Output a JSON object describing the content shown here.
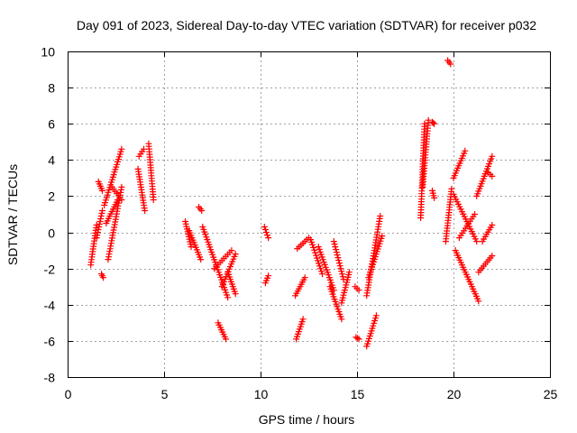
{
  "chart_data": {
    "type": "scatter",
    "title": "Day 091 of 2023, Sidereal Day-to-day VTEC variation (SDTVAR) for receiver p032",
    "xlabel": "GPS time / hours",
    "ylabel": "SDTVAR / TECUs",
    "xlim": [
      0,
      25
    ],
    "ylim": [
      -8,
      10
    ],
    "x_ticks": [
      0,
      5,
      10,
      15,
      20,
      25
    ],
    "y_ticks": [
      -8,
      -6,
      -4,
      -2,
      0,
      2,
      4,
      6,
      8,
      10
    ],
    "x_tick_labels": [
      "0",
      "5",
      "10",
      "15",
      "20",
      "25"
    ],
    "y_tick_labels": [
      "-8",
      "-6",
      "-4",
      "-2",
      "0",
      "2",
      "4",
      "6",
      "8",
      "10"
    ],
    "grid": true,
    "legend": "none",
    "marker": "+",
    "color": "#ff0000",
    "series": [
      {
        "arcs": [
          {
            "x": [
              1.2,
              1.5
            ],
            "y": [
              -1.8,
              0.4
            ]
          },
          {
            "x": [
              1.5,
              1.8
            ],
            "y": [
              -0.3,
              1.2
            ]
          },
          {
            "x": [
              1.6,
              1.8
            ],
            "y": [
              2.8,
              2.3
            ]
          },
          {
            "x": [
              1.75,
              1.85
            ],
            "y": [
              -2.3,
              -2.5
            ]
          },
          {
            "x": [
              1.9,
              2.8
            ],
            "y": [
              1.5,
              4.6
            ]
          },
          {
            "x": [
              2.1,
              2.8
            ],
            "y": [
              -1.5,
              2.5
            ]
          },
          {
            "x": [
              2.0,
              2.6
            ],
            "y": [
              0.5,
              1.8
            ]
          },
          {
            "x": [
              2.3,
              2.8
            ],
            "y": [
              2.5,
              1.8
            ]
          },
          {
            "x": [
              3.7,
              3.95
            ],
            "y": [
              4.2,
              4.6
            ]
          },
          {
            "x": [
              3.65,
              4.0
            ],
            "y": [
              3.5,
              1.2
            ]
          },
          {
            "x": [
              4.2,
              4.45
            ],
            "y": [
              4.9,
              1.8
            ]
          },
          {
            "x": [
              6.1,
              6.4
            ],
            "y": [
              0.6,
              -0.8
            ]
          },
          {
            "x": [
              6.3,
              6.9
            ],
            "y": [
              0.1,
              -1.5
            ]
          },
          {
            "x": [
              6.8,
              6.95
            ],
            "y": [
              1.4,
              1.2
            ]
          },
          {
            "x": [
              7.0,
              8.3
            ],
            "y": [
              0.3,
              -3.6
            ]
          },
          {
            "x": [
              7.8,
              8.2
            ],
            "y": [
              -5.0,
              -5.9
            ]
          },
          {
            "x": [
              7.6,
              8.5
            ],
            "y": [
              -2.0,
              -1.0
            ]
          },
          {
            "x": [
              8.0,
              8.7
            ],
            "y": [
              -3.0,
              -1.2
            ]
          },
          {
            "x": [
              8.3,
              8.7
            ],
            "y": [
              -2.2,
              -3.4
            ]
          },
          {
            "x": [
              10.25,
              10.4
            ],
            "y": [
              -2.8,
              -2.4
            ]
          },
          {
            "x": [
              10.2,
              10.4
            ],
            "y": [
              0.3,
              -0.3
            ]
          },
          {
            "x": [
              11.8,
              12.3
            ],
            "y": [
              -3.5,
              -2.5
            ]
          },
          {
            "x": [
              11.85,
              12.2
            ],
            "y": [
              -5.9,
              -4.8
            ]
          },
          {
            "x": [
              11.9,
              12.5
            ],
            "y": [
              -0.9,
              -0.3
            ]
          },
          {
            "x": [
              12.6,
              13.2
            ],
            "y": [
              -0.4,
              -2.3
            ]
          },
          {
            "x": [
              13.0,
              13.8
            ],
            "y": [
              -0.8,
              -3.2
            ]
          },
          {
            "x": [
              13.6,
              14.2
            ],
            "y": [
              -3.0,
              -4.8
            ]
          },
          {
            "x": [
              13.8,
              14.3
            ],
            "y": [
              -0.5,
              -2.6
            ]
          },
          {
            "x": [
              14.2,
              14.6
            ],
            "y": [
              -3.9,
              -2.2
            ]
          },
          {
            "x": [
              14.9,
              15.1
            ],
            "y": [
              -3.0,
              -3.2
            ]
          },
          {
            "x": [
              14.95,
              15.1
            ],
            "y": [
              -5.8,
              -5.9
            ]
          },
          {
            "x": [
              15.5,
              16.0
            ],
            "y": [
              -6.3,
              -4.6
            ]
          },
          {
            "x": [
              15.5,
              16.2
            ],
            "y": [
              -3.5,
              0.9
            ]
          },
          {
            "x": [
              15.6,
              16.3
            ],
            "y": [
              -2.5,
              -0.2
            ]
          },
          {
            "x": [
              18.3,
              18.5
            ],
            "y": [
              0.8,
              6.0
            ]
          },
          {
            "x": [
              18.4,
              18.7
            ],
            "y": [
              2.5,
              6.2
            ]
          },
          {
            "x": [
              18.9,
              19.0
            ],
            "y": [
              6.1,
              6.0
            ]
          },
          {
            "x": [
              18.9,
              19.0
            ],
            "y": [
              2.3,
              1.9
            ]
          },
          {
            "x": [
              19.7,
              19.85
            ],
            "y": [
              9.5,
              9.3
            ]
          },
          {
            "x": [
              19.6,
              19.9
            ],
            "y": [
              -0.5,
              2.4
            ]
          },
          {
            "x": [
              20.0,
              20.6
            ],
            "y": [
              3.0,
              4.5
            ]
          },
          {
            "x": [
              20.0,
              21.2
            ],
            "y": [
              2.1,
              -0.5
            ]
          },
          {
            "x": [
              20.1,
              21.3
            ],
            "y": [
              -1.0,
              -3.8
            ]
          },
          {
            "x": [
              20.3,
              21.1
            ],
            "y": [
              -0.3,
              1.0
            ]
          },
          {
            "x": [
              21.2,
              22.0
            ],
            "y": [
              2.0,
              4.2
            ]
          },
          {
            "x": [
              21.3,
              22.0
            ],
            "y": [
              -2.2,
              -1.3
            ]
          },
          {
            "x": [
              21.5,
              22.0
            ],
            "y": [
              -0.5,
              0.4
            ]
          },
          {
            "x": [
              21.8,
              22.0
            ],
            "y": [
              3.3,
              3.1
            ]
          }
        ]
      }
    ]
  }
}
